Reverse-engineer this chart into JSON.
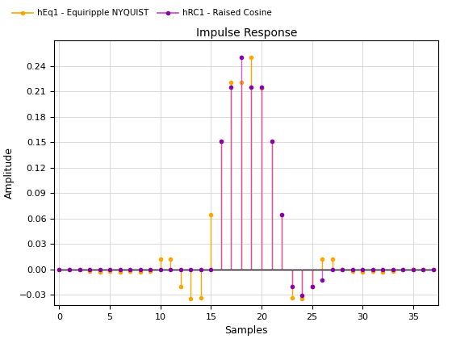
{
  "title": "Impulse Response",
  "xlabel": "Samples",
  "ylabel": "Amplitude",
  "legend_labels": [
    "hEq1 - Equiripple NYQUIST",
    "hRC1 - Raised Cosine"
  ],
  "color_eq": "#FFA500",
  "color_rc": "#CC44CC",
  "markercolor_eq": "#FFA500",
  "markercolor_rc": "#8800AA",
  "xlim": [
    -0.5,
    37.5
  ],
  "ylim": [
    -0.042,
    0.27
  ],
  "yticks": [
    -0.03,
    0.0,
    0.03,
    0.06,
    0.09,
    0.12,
    0.15,
    0.18,
    0.21,
    0.24
  ],
  "xticks": [
    0,
    5,
    10,
    15,
    20,
    25,
    30,
    35
  ],
  "hEq1": [
    0.0,
    0.0,
    0.0,
    -0.002,
    -0.003,
    -0.002,
    -0.003,
    -0.002,
    -0.003,
    -0.002,
    0.012,
    0.012,
    -0.02,
    -0.034,
    -0.033,
    0.065,
    0.151,
    0.221,
    0.221,
    0.25,
    0.214,
    0.151,
    0.065,
    -0.033,
    -0.034,
    -0.02,
    0.012,
    0.012,
    0.0,
    -0.002,
    -0.003,
    -0.002,
    -0.003,
    -0.002,
    0.0,
    0.0,
    0.0,
    0.0
  ],
  "hRC1": [
    0.0,
    0.0,
    0.0,
    0.0,
    0.0,
    0.0,
    0.0,
    0.0,
    0.0,
    0.0,
    0.0,
    0.0,
    0.0,
    0.0,
    0.0,
    0.0,
    0.151,
    0.215,
    0.25,
    0.215,
    0.215,
    0.151,
    0.065,
    -0.02,
    -0.031,
    -0.02,
    -0.012,
    0.0,
    0.0,
    0.0,
    0.0,
    0.0,
    0.0,
    0.0,
    0.0,
    0.0,
    0.0,
    0.0
  ]
}
